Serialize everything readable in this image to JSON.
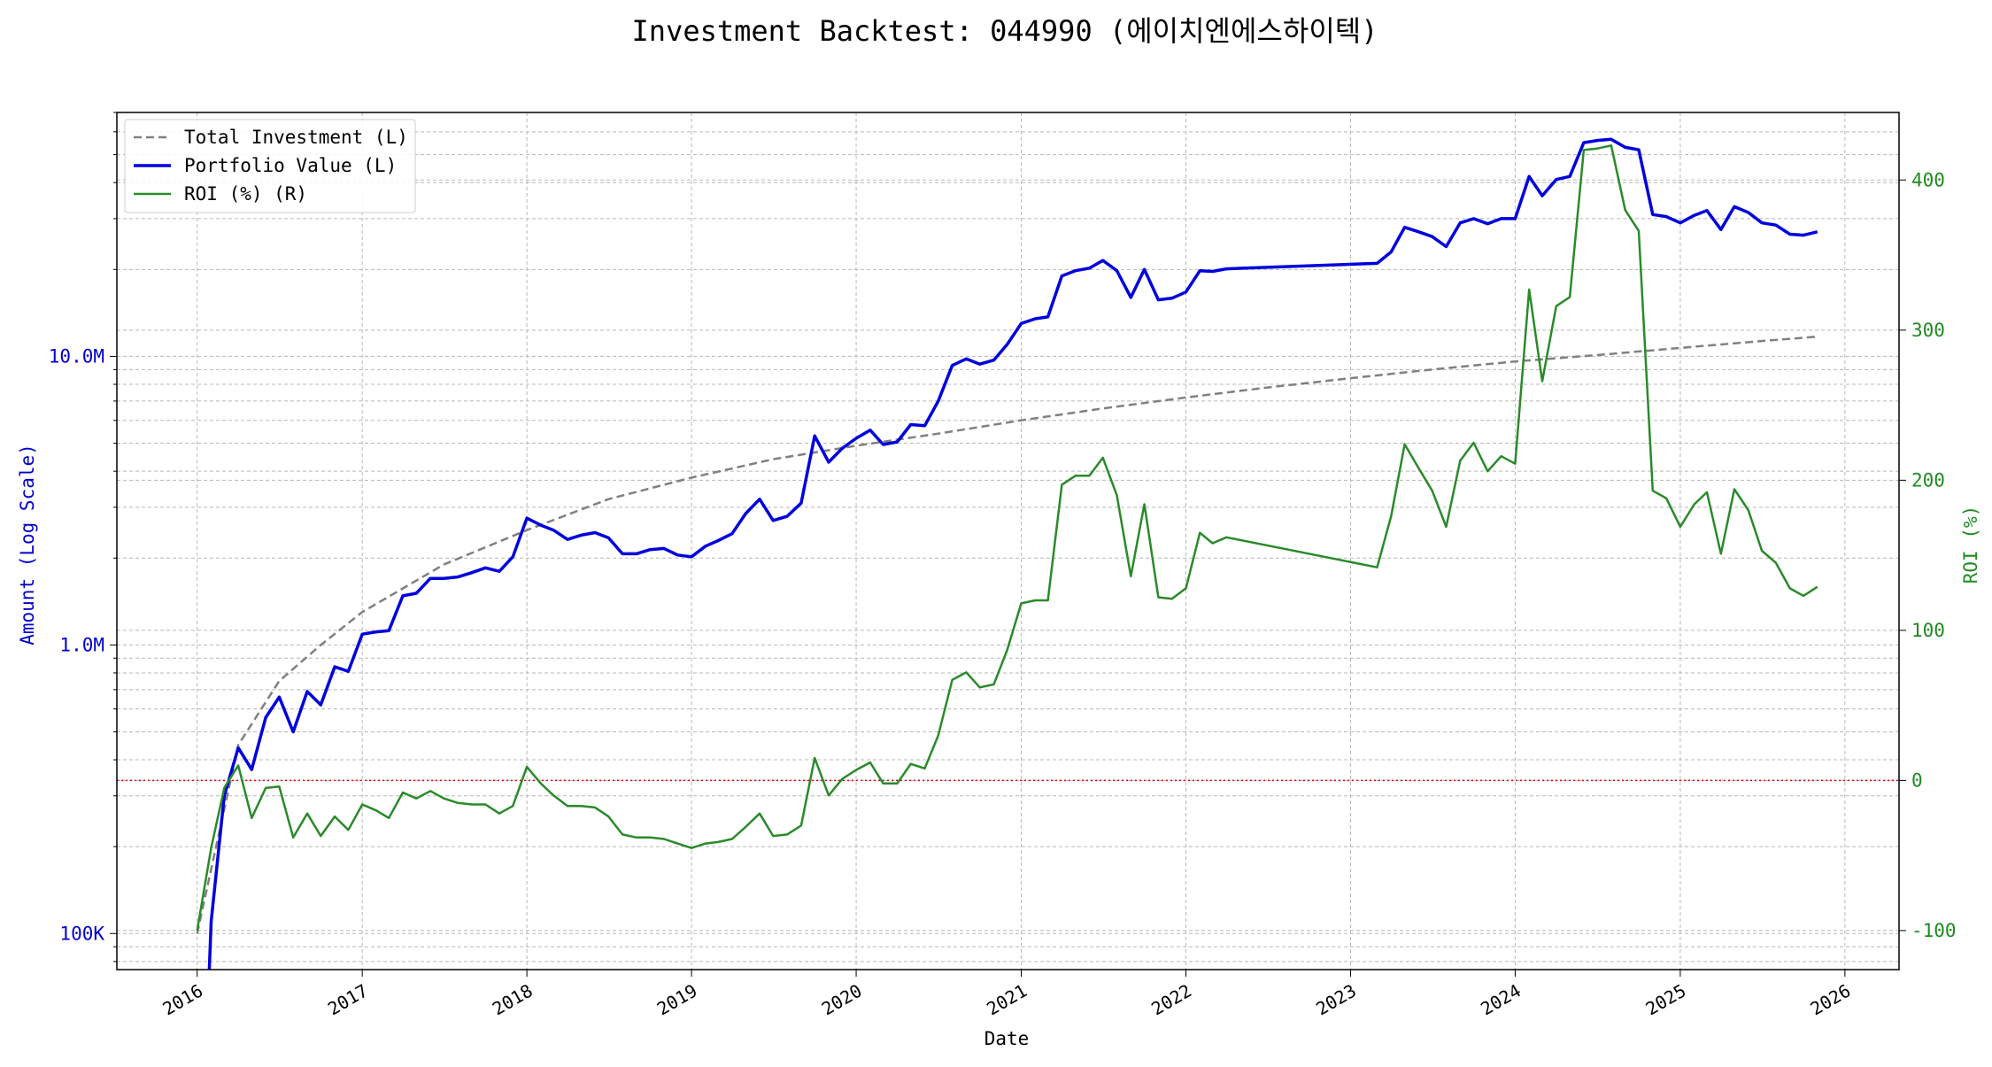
{
  "chart_data": {
    "type": "line",
    "title": "Investment Backtest: 044990 (에이치엔에스하이텍)",
    "xlabel": "Date",
    "ylabel_left": "Amount (Log Scale)",
    "ylabel_right": "ROI (%)",
    "y_left_scale": "log",
    "y_left_range": [
      75000,
      70000000
    ],
    "y_right_range": [
      -126,
      445
    ],
    "x_range": [
      "2015-07-07",
      "2026-05-01"
    ],
    "grid": true,
    "legend_position": "top-left",
    "x_ticks": [
      "2016",
      "2017",
      "2018",
      "2019",
      "2020",
      "2021",
      "2022",
      "2023",
      "2024",
      "2025",
      "2026"
    ],
    "y_left_ticks": [
      {
        "value": 100000,
        "label": "100K"
      },
      {
        "value": 1000000,
        "label": "1.0M"
      },
      {
        "value": 10000000,
        "label": "10.0M"
      }
    ],
    "y_right_ticks": [
      -100,
      0,
      100,
      200,
      300,
      400
    ],
    "reference_line": {
      "axis": "right",
      "value": 0,
      "color": "#dd0000",
      "style": "dotted"
    },
    "series": [
      {
        "name": "Total Investment (L)",
        "axis": "left",
        "color": "#808080",
        "style": "dashed",
        "dates": [
          "2016-01-01",
          "2016-04-01",
          "2016-07-01",
          "2016-10-01",
          "2017-01-01",
          "2017-07-01",
          "2018-01-01",
          "2018-07-01",
          "2019-01-01",
          "2019-07-01",
          "2020-01-01",
          "2020-07-01",
          "2021-01-01",
          "2021-07-01",
          "2022-01-01",
          "2022-07-01",
          "2023-01-01",
          "2023-07-01",
          "2024-01-01",
          "2024-07-01",
          "2025-01-01",
          "2025-07-01",
          "2025-11-01"
        ],
        "values": [
          100000,
          450000,
          750000,
          1000000,
          1300000,
          1900000,
          2500000,
          3200000,
          3800000,
          4400000,
          4900000,
          5400000,
          6000000,
          6600000,
          7200000,
          7800000,
          8400000,
          9000000,
          9600000,
          10100000,
          10700000,
          11300000,
          11700000
        ]
      },
      {
        "name": "Portfolio Value (L)",
        "axis": "left",
        "color": "#0000dd",
        "style": "solid",
        "dates": [
          "2016-01-28",
          "2016-02-01",
          "2016-03-01",
          "2016-04-01",
          "2016-05-01",
          "2016-06-01",
          "2016-07-01",
          "2016-08-01",
          "2016-09-01",
          "2016-10-01",
          "2016-11-01",
          "2016-12-01",
          "2017-01-01",
          "2017-02-01",
          "2017-03-01",
          "2017-04-01",
          "2017-05-01",
          "2017-06-01",
          "2017-07-01",
          "2017-08-01",
          "2017-09-01",
          "2017-10-01",
          "2017-11-01",
          "2017-12-01",
          "2018-01-01",
          "2018-02-01",
          "2018-03-01",
          "2018-04-01",
          "2018-05-01",
          "2018-06-01",
          "2018-07-01",
          "2018-08-01",
          "2018-09-01",
          "2018-10-01",
          "2018-11-01",
          "2018-12-01",
          "2019-01-01",
          "2019-02-01",
          "2019-03-01",
          "2019-04-01",
          "2019-05-01",
          "2019-06-01",
          "2019-07-01",
          "2019-08-01",
          "2019-09-01",
          "2019-10-01",
          "2019-11-01",
          "2019-12-01",
          "2020-01-01",
          "2020-02-01",
          "2020-03-01",
          "2020-04-01",
          "2020-05-01",
          "2020-06-01",
          "2020-07-01",
          "2020-08-01",
          "2020-09-01",
          "2020-10-01",
          "2020-11-01",
          "2020-12-01",
          "2021-01-01",
          "2021-02-01",
          "2021-03-01",
          "2021-04-01",
          "2021-05-01",
          "2021-06-01",
          "2021-07-01",
          "2021-08-01",
          "2021-09-01",
          "2021-10-01",
          "2021-11-01",
          "2021-12-01",
          "2022-01-01",
          "2022-02-01",
          "2022-03-01",
          "2022-04-01",
          "2023-03-01",
          "2023-04-01",
          "2023-05-01",
          "2023-06-01",
          "2023-07-01",
          "2023-08-01",
          "2023-09-01",
          "2023-10-01",
          "2023-11-01",
          "2023-12-01",
          "2024-01-01",
          "2024-02-01",
          "2024-03-01",
          "2024-04-01",
          "2024-05-01",
          "2024-06-01",
          "2024-07-01",
          "2024-08-01",
          "2024-09-01",
          "2024-10-01",
          "2024-11-01",
          "2024-12-01",
          "2025-01-01",
          "2025-02-01",
          "2025-03-01",
          "2025-04-01",
          "2025-05-01",
          "2025-06-01",
          "2025-07-01",
          "2025-08-01",
          "2025-09-01",
          "2025-10-01",
          "2025-11-01"
        ],
        "values": [
          75000,
          110000,
          300000,
          440000,
          370000,
          560000,
          660000,
          500000,
          690000,
          620000,
          840000,
          810000,
          1090000,
          1110000,
          1120000,
          1480000,
          1510000,
          1700000,
          1700000,
          1720000,
          1780000,
          1850000,
          1800000,
          2020000,
          2750000,
          2600000,
          2500000,
          2320000,
          2400000,
          2450000,
          2350000,
          2070000,
          2070000,
          2140000,
          2160000,
          2050000,
          2020000,
          2200000,
          2300000,
          2430000,
          2850000,
          3200000,
          2700000,
          2790000,
          3100000,
          5300000,
          4300000,
          4800000,
          5200000,
          5550000,
          4950000,
          5050000,
          5800000,
          5750000,
          7000000,
          9300000,
          9800000,
          9400000,
          9700000,
          11000000,
          13000000,
          13500000,
          13700000,
          19000000,
          19800000,
          20200000,
          21500000,
          19800000,
          16000000,
          20000000,
          15700000,
          15900000,
          16700000,
          19800000,
          19700000,
          20100000,
          21000000,
          23000000,
          28000000,
          27000000,
          26000000,
          24000000,
          29000000,
          30000000,
          28800000,
          30000000,
          30000000,
          42000000,
          36000000,
          41000000,
          42000000,
          55000000,
          56000000,
          56500000,
          53000000,
          52000000,
          31000000,
          30500000,
          29000000,
          30800000,
          32000000,
          27500000,
          33000000,
          31500000,
          29000000,
          28500000,
          26500000,
          26300000,
          27000000
        ]
      },
      {
        "name": "ROI (%) (R)",
        "axis": "right",
        "color": "#2a8a2a",
        "style": "solid",
        "dates": [
          "2016-01-01",
          "2016-02-01",
          "2016-03-01",
          "2016-04-01",
          "2016-05-01",
          "2016-06-01",
          "2016-07-01",
          "2016-08-01",
          "2016-09-01",
          "2016-10-01",
          "2016-11-01",
          "2016-12-01",
          "2017-01-01",
          "2017-02-01",
          "2017-03-01",
          "2017-04-01",
          "2017-05-01",
          "2017-06-01",
          "2017-07-01",
          "2017-08-01",
          "2017-09-01",
          "2017-10-01",
          "2017-11-01",
          "2017-12-01",
          "2018-01-01",
          "2018-02-01",
          "2018-03-01",
          "2018-04-01",
          "2018-05-01",
          "2018-06-01",
          "2018-07-01",
          "2018-08-01",
          "2018-09-01",
          "2018-10-01",
          "2018-11-01",
          "2018-12-01",
          "2019-01-01",
          "2019-02-01",
          "2019-03-01",
          "2019-04-01",
          "2019-05-01",
          "2019-06-01",
          "2019-07-01",
          "2019-08-01",
          "2019-09-01",
          "2019-10-01",
          "2019-11-01",
          "2019-12-01",
          "2020-01-01",
          "2020-02-01",
          "2020-03-01",
          "2020-04-01",
          "2020-05-01",
          "2020-06-01",
          "2020-07-01",
          "2020-08-01",
          "2020-09-01",
          "2020-10-01",
          "2020-11-01",
          "2020-12-01",
          "2021-01-01",
          "2021-02-01",
          "2021-03-01",
          "2021-04-01",
          "2021-05-01",
          "2021-06-01",
          "2021-07-01",
          "2021-08-01",
          "2021-09-01",
          "2021-10-01",
          "2021-11-01",
          "2021-12-01",
          "2022-01-01",
          "2022-02-01",
          "2022-03-01",
          "2022-04-01",
          "2023-03-01",
          "2023-04-01",
          "2023-05-01",
          "2023-06-01",
          "2023-07-01",
          "2023-08-01",
          "2023-09-01",
          "2023-10-01",
          "2023-11-01",
          "2023-12-01",
          "2024-01-01",
          "2024-02-01",
          "2024-03-01",
          "2024-04-01",
          "2024-05-01",
          "2024-06-01",
          "2024-07-01",
          "2024-08-01",
          "2024-09-01",
          "2024-10-01",
          "2024-11-01",
          "2024-12-01",
          "2025-01-01",
          "2025-02-01",
          "2025-03-01",
          "2025-04-01",
          "2025-05-01",
          "2025-06-01",
          "2025-07-01",
          "2025-08-01",
          "2025-09-01",
          "2025-10-01",
          "2025-11-01"
        ],
        "values": [
          -100,
          -45,
          -5,
          10,
          -25,
          -5,
          -4,
          -38,
          -22,
          -37,
          -24,
          -33,
          -16,
          -20,
          -25,
          -8,
          -12,
          -7,
          -12,
          -15,
          -16,
          -16,
          -22,
          -17,
          9,
          -2,
          -10,
          -17,
          -17,
          -18,
          -24,
          -36,
          -38,
          -38,
          -39,
          -42,
          -45,
          -42,
          -41,
          -39,
          -31,
          -22,
          -37,
          -36,
          -30,
          15,
          -10,
          1,
          7,
          12,
          -2,
          -2,
          11,
          8,
          30,
          67,
          72,
          62,
          64,
          87,
          118,
          120,
          120,
          197,
          203,
          203,
          215,
          190,
          136,
          184,
          122,
          121,
          128,
          165,
          158,
          162,
          142,
          176,
          224,
          208,
          193,
          169,
          213,
          225,
          206,
          216,
          211,
          327,
          266,
          316,
          322,
          420,
          421,
          423,
          380,
          366,
          193,
          188,
          169,
          184,
          192,
          151,
          194,
          180,
          153,
          145,
          128,
          123,
          129
        ]
      }
    ]
  }
}
